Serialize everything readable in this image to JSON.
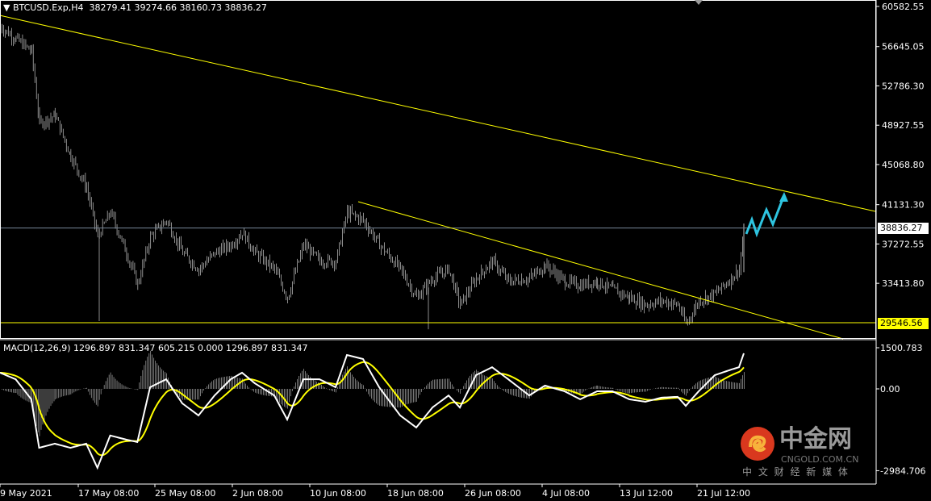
{
  "header": {
    "symbol_menu_icon": "triangle-down-icon",
    "symbol": "BTCUSD.Exp,H4",
    "ohlc": "38279.41 39274.66 38160.73 38836.27"
  },
  "macd_header": "MACD(12,26,9) 1296.897 831.347 605.215 0.000 1296.897 831.347",
  "colors": {
    "background": "#000000",
    "candles": "#8c8c8c",
    "trendline": "#ffff00",
    "bid_line": "#778899",
    "macd_main": "#ffffff",
    "macd_signal": "#ffff00",
    "arrow": "#2ec4e0"
  },
  "watermark": {
    "brand": "中金网",
    "domain": "CNGOLD.COM.CN",
    "slogan": "中 文 财 经 新 媒 体"
  },
  "chart_data": [
    {
      "type": "candlestick",
      "price_axis": {
        "ticks": [
          "60582.55",
          "56645.05",
          "52786.30",
          "48927.55",
          "45068.80",
          "41131.30",
          "37272.55",
          "33413.80"
        ],
        "range": [
          27700,
          60900
        ],
        "current_price": "38836.27",
        "support_level": "29546.56"
      },
      "time_axis": {
        "ticks": [
          {
            "label": "9 May 2021",
            "t": "2021-05-09T00:00"
          },
          {
            "label": "17 May 08:00",
            "t": "2021-05-17T08:00"
          },
          {
            "label": "25 May 08:00",
            "t": "2021-05-25T08:00"
          },
          {
            "label": "2 Jun 08:00",
            "t": "2021-06-02T08:00"
          },
          {
            "label": "10 Jun 08:00",
            "t": "2021-06-10T08:00"
          },
          {
            "label": "18 Jun 08:00",
            "t": "2021-06-18T08:00"
          },
          {
            "label": "26 Jun 08:00",
            "t": "2021-06-26T08:00"
          },
          {
            "label": "4 Jul 08:00",
            "t": "2021-07-04T08:00"
          },
          {
            "label": "13 Jul 12:00",
            "t": "2021-07-13T12:00"
          },
          {
            "label": "21 Jul 12:00",
            "t": "2021-07-21T12:00"
          }
        ]
      },
      "closes": [
        [
          "2021-05-09T00:00",
          58600
        ],
        [
          "2021-05-10T16:00",
          57400
        ],
        [
          "2021-05-12T08:00",
          56200
        ],
        [
          "2021-05-13T04:00",
          49100
        ],
        [
          "2021-05-14T20:00",
          49900
        ],
        [
          "2021-05-16T12:00",
          45900
        ],
        [
          "2021-05-18T04:00",
          42800
        ],
        [
          "2021-05-19T08:00",
          38000
        ],
        [
          "2021-05-20T16:00",
          40400
        ],
        [
          "2021-05-22T08:00",
          36400
        ],
        [
          "2021-05-23T12:00",
          33300
        ],
        [
          "2021-05-24T20:00",
          38000
        ],
        [
          "2021-05-26T12:00",
          39600
        ],
        [
          "2021-05-28T04:00",
          36400
        ],
        [
          "2021-05-29T20:00",
          34800
        ],
        [
          "2021-05-31T12:00",
          36400
        ],
        [
          "2021-06-02T04:00",
          37200
        ],
        [
          "2021-06-03T08:00",
          38400
        ],
        [
          "2021-06-04T16:00",
          36400
        ],
        [
          "2021-06-06T16:00",
          34800
        ],
        [
          "2021-06-08T00:00",
          32000
        ],
        [
          "2021-06-09T16:00",
          37200
        ],
        [
          "2021-06-11T08:00",
          35600
        ],
        [
          "2021-06-13T00:00",
          35600
        ],
        [
          "2021-06-14T04:00",
          40400
        ],
        [
          "2021-06-15T20:00",
          39600
        ],
        [
          "2021-06-17T12:00",
          37200
        ],
        [
          "2021-06-19T16:00",
          34800
        ],
        [
          "2021-06-21T08:00",
          32000
        ],
        [
          "2021-06-23T00:00",
          33900
        ],
        [
          "2021-06-24T16:00",
          34800
        ],
        [
          "2021-06-25T20:00",
          31300
        ],
        [
          "2021-06-27T12:00",
          33900
        ],
        [
          "2021-06-29T04:00",
          35600
        ],
        [
          "2021-06-30T20:00",
          33600
        ],
        [
          "2021-07-03T00:00",
          33900
        ],
        [
          "2021-07-04T16:00",
          35200
        ],
        [
          "2021-07-07T00:00",
          33600
        ],
        [
          "2021-07-08T20:00",
          33200
        ],
        [
          "2021-07-10T20:00",
          33600
        ],
        [
          "2021-07-12T16:00",
          32800
        ],
        [
          "2021-07-14T12:00",
          32000
        ],
        [
          "2021-07-16T04:00",
          31300
        ],
        [
          "2021-07-17T20:00",
          31700
        ],
        [
          "2021-07-19T12:00",
          31300
        ],
        [
          "2021-07-20T08:00",
          29400
        ],
        [
          "2021-07-21T16:00",
          31700
        ],
        [
          "2021-07-23T08:00",
          32400
        ],
        [
          "2021-07-25T00:00",
          33900
        ],
        [
          "2021-07-25T20:00",
          34800
        ],
        [
          "2021-07-26T08:00",
          38836.27
        ]
      ],
      "trendlines": [
        {
          "from": [
            "2021-05-09T00:00",
            59700
          ],
          "to": [
            "2021-08-08T22:00",
            40470
          ]
        },
        {
          "from": [
            "2021-06-15T08:00",
            41420
          ],
          "to": [
            "2021-08-05T14:00",
            27960
          ]
        }
      ],
      "horizontal_lines": [
        {
          "price": 29546.56,
          "color": "#ffff00"
        },
        {
          "price": 38836.27,
          "color": "#778899"
        }
      ]
    },
    {
      "type": "line",
      "indicator": "MACD(12,26,9)",
      "y_ticks": [
        "1500.783",
        "0.00",
        "-2984.706"
      ],
      "range": [
        -3300,
        1800
      ],
      "macd_main": [
        590,
        350,
        -380,
        -2150,
        -2000,
        -2150,
        -2000,
        -2880,
        -1700,
        -1850,
        -1940,
        60,
        350,
        -530,
        -970,
        -240,
        350,
        590,
        200,
        -240,
        -1120,
        350,
        350,
        60,
        1235,
        1090,
        60,
        -970,
        -1410,
        -680,
        -240,
        -680,
        500,
        790,
        350,
        -240,
        120,
        -90,
        -380,
        -90,
        -90,
        -380,
        -470,
        -320,
        -290,
        -620,
        -90,
        500,
        700,
        790,
        1297
      ]
    }
  ]
}
